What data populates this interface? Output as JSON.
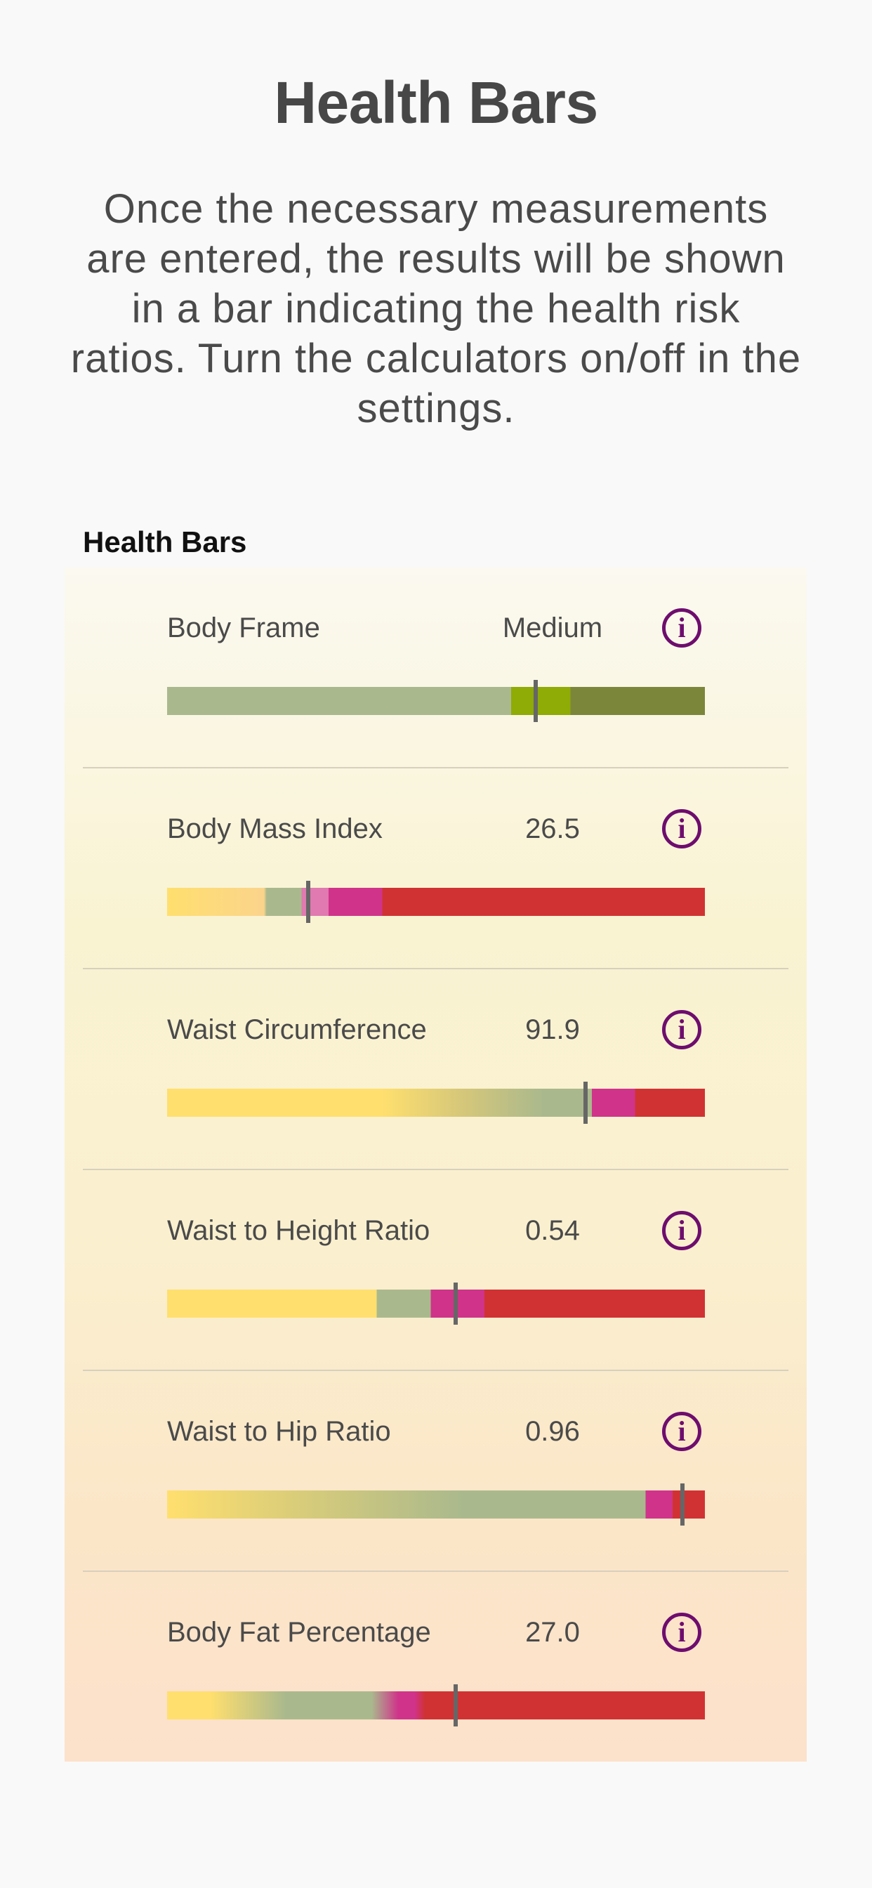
{
  "title": "Health Bars",
  "intro": "Once the necessary measurements are entered, the results will be shown in a bar indicating the health risk ratios. Turn the calculators on/off in the settings.",
  "section_header": "Health Bars",
  "colors": {
    "info_icon": "#6e0d6e",
    "marker": "#666666",
    "yellow": "#ffdf6e",
    "green": "#aab98d",
    "pink": "#d0338a",
    "red": "#d03234"
  },
  "rows": [
    {
      "label": "Body Frame",
      "value": "Medium",
      "icon": "info-icon",
      "marker_fraction": 0.685,
      "gradient": "linear-gradient(to right, #aab98d 0%, #aab98d 64%, #8fab05 64%, #8fab05 75%, #7b863b 75%, #7b863b 100%)"
    },
    {
      "label": "Body Mass Index",
      "value": "26.5",
      "icon": "info-icon",
      "marker_fraction": 0.263,
      "gradient": "linear-gradient(to right, #ffdf6e 0%, #fbd48c 18%, #aab98d 18.5%, #aab98d 25%, #e07ab0 25%, #e07ab0 30%, #d0338a 30%, #d0338a 40%, #d03234 40%, #d03234 100%)"
    },
    {
      "label": "Waist Circumference",
      "value": "91.9",
      "icon": "info-icon",
      "marker_fraction": 0.778,
      "gradient": "linear-gradient(to right, #ffdf6e 0%, #ffdf6e 40%, #d5c77a 55%, #aab98d 70%, #aab98d 79%, #d0338a 79%, #d0338a 87%, #d03234 87%, #d03234 100%)"
    },
    {
      "label": "Waist to Height Ratio",
      "value": "0.54",
      "icon": "info-icon",
      "marker_fraction": 0.536,
      "gradient": "linear-gradient(to right, #ffdf6e 0%, #ffdf6e 39%, #aab98d 39%, #aab98d 49%, #d0338a 49%, #d0338a 59%, #d03234 59%, #d03234 100%)"
    },
    {
      "label": "Waist to Hip Ratio",
      "value": "0.96",
      "icon": "info-icon",
      "marker_fraction": 0.958,
      "gradient": "linear-gradient(to right, #ffdf6e 0%, #d8cc7a 25%, #aab98d 55%, #aab98d 89%, #d0338a 89%, #d0338a 94%, #d03234 94%, #d03234 100%)"
    },
    {
      "label": "Body Fat Percentage",
      "value": "27.0",
      "icon": "info-icon",
      "marker_fraction": 0.536,
      "gradient": "linear-gradient(to right, #ffdf6e 0%, #ffdf6e 8%, #aab98d 22%, #aab98d 38%, #d0338a 43%, #d0338a 46%, #d03234 48%, #d03234 100%)"
    }
  ]
}
